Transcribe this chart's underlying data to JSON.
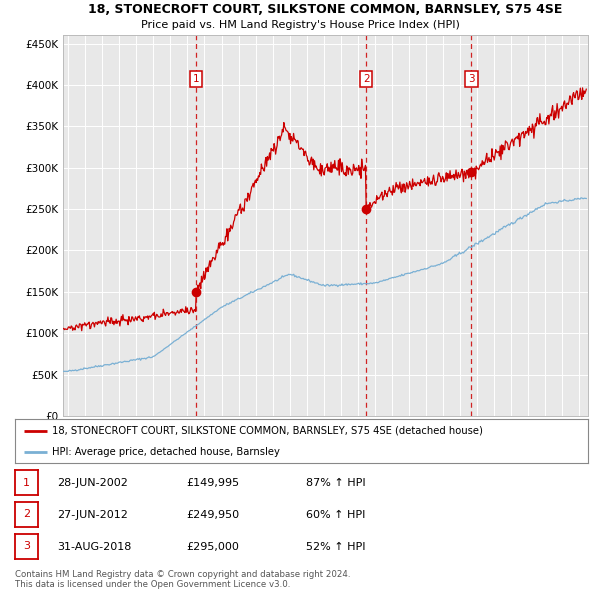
{
  "title": "18, STONECROFT COURT, SILKSTONE COMMON, BARNSLEY, S75 4SE",
  "subtitle": "Price paid vs. HM Land Registry's House Price Index (HPI)",
  "plot_bg_color": "#e8e8e8",
  "fig_bg_color": "#ffffff",
  "red_line_color": "#cc0000",
  "blue_line_color": "#7ab0d4",
  "dashed_color": "#cc0000",
  "sale_nums": [
    2002.49,
    2012.49,
    2018.66
  ],
  "sale_prices_val": [
    149995,
    249950,
    295000
  ],
  "sale_labels": [
    "1",
    "2",
    "3"
  ],
  "sale_dates": [
    "28-JUN-2002",
    "27-JUN-2012",
    "31-AUG-2018"
  ],
  "sale_prices_str": [
    "£149,995",
    "£249,950",
    "£295,000"
  ],
  "sale_pct": [
    "87% ↑ HPI",
    "60% ↑ HPI",
    "52% ↑ HPI"
  ],
  "ylabel_ticks": [
    0,
    50000,
    100000,
    150000,
    200000,
    250000,
    300000,
    350000,
    400000,
    450000
  ],
  "ylabel_labels": [
    "£0",
    "£50K",
    "£100K",
    "£150K",
    "£200K",
    "£250K",
    "£300K",
    "£350K",
    "£400K",
    "£450K"
  ],
  "xmin": 1994.7,
  "xmax": 2025.5,
  "ymin": 0,
  "ymax": 460000,
  "legend_line1": "18, STONECROFT COURT, SILKSTONE COMMON, BARNSLEY, S75 4SE (detached house)",
  "legend_line2": "HPI: Average price, detached house, Barnsley",
  "footnote": "Contains HM Land Registry data © Crown copyright and database right 2024.\nThis data is licensed under the Open Government Licence v3.0."
}
